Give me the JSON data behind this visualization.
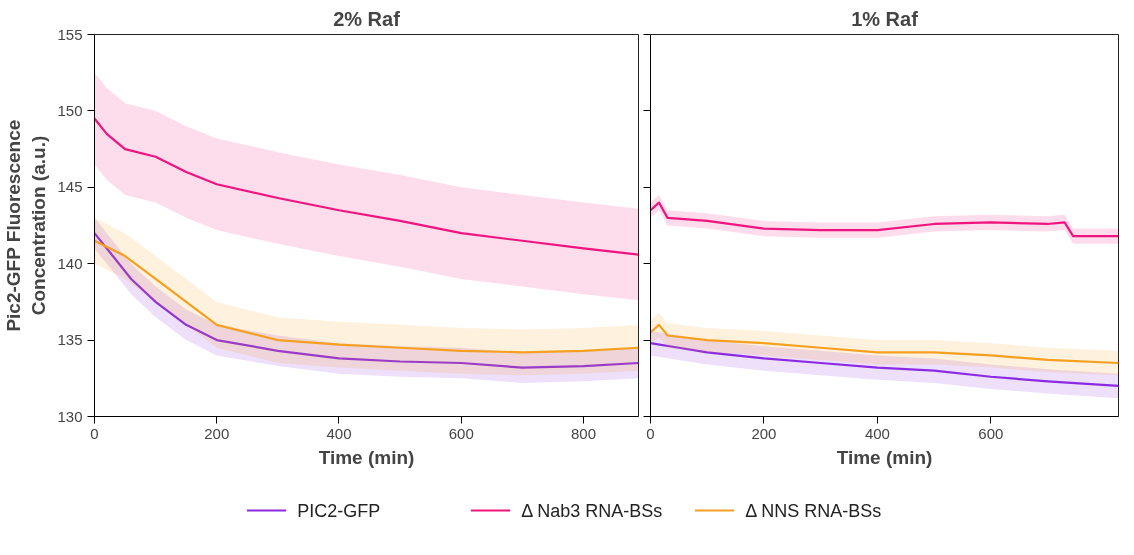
{
  "chart_data": [
    {
      "type": "line",
      "title": "2% Raf",
      "xlabel": "Time (min)",
      "ylabel": "Pic2-GFP Fluorescence\nConcentration (a.u.)",
      "xlim": [
        0,
        890
      ],
      "xticks": [
        0,
        200,
        400,
        600,
        800
      ],
      "ylim": [
        130,
        155
      ],
      "yticks": [
        130,
        135,
        140,
        145,
        150,
        155
      ],
      "grid": false,
      "legend": "bottom",
      "marker": "none",
      "line_style": "solid",
      "series": [
        {
          "name": "PIC2-GFP",
          "color": "#8a2be2",
          "x": [
            0,
            30,
            60,
            100,
            150,
            200,
            300,
            400,
            500,
            600,
            700,
            800,
            890
          ],
          "values": [
            142,
            140.5,
            139,
            137.5,
            136,
            135,
            134.3,
            133.8,
            133.6,
            133.5,
            133.2,
            133.3,
            133.5
          ],
          "lower": [
            141,
            139.5,
            138,
            136.5,
            135,
            134,
            133.3,
            132.8,
            132.6,
            132.5,
            132.2,
            132.3,
            132.5
          ],
          "upper": [
            143,
            141.5,
            140,
            138.5,
            137,
            136,
            135.3,
            134.8,
            134.6,
            134.5,
            134.2,
            134.3,
            134.5
          ]
        },
        {
          "name": "Δ Nab3 RNA-BSs",
          "color": "#f0147f",
          "x": [
            0,
            20,
            50,
            100,
            150,
            200,
            300,
            400,
            500,
            600,
            700,
            800,
            890
          ],
          "values": [
            149.5,
            148.5,
            147.5,
            147,
            146,
            145.2,
            144.3,
            143.5,
            142.8,
            142,
            141.5,
            141,
            140.6
          ],
          "lower": [
            146.5,
            145.5,
            144.5,
            144,
            143,
            142.2,
            141.3,
            140.5,
            139.8,
            139,
            138.5,
            138,
            137.6
          ],
          "upper": [
            152.5,
            151.5,
            150.5,
            150,
            149,
            148.2,
            147.3,
            146.5,
            145.8,
            145,
            144.5,
            144,
            143.6
          ]
        },
        {
          "name": "Δ NNS RNA-BSs",
          "color": "#f5a020",
          "x": [
            0,
            50,
            100,
            150,
            200,
            300,
            400,
            500,
            600,
            700,
            800,
            890
          ],
          "values": [
            141.5,
            140.5,
            139,
            137.5,
            136,
            135,
            134.7,
            134.5,
            134.3,
            134.2,
            134.3,
            134.5
          ],
          "lower": [
            140,
            139,
            137.5,
            136,
            134.5,
            133.5,
            133.2,
            133,
            132.8,
            132.7,
            132.8,
            133
          ],
          "upper": [
            143,
            142,
            140.5,
            139,
            137.5,
            136.5,
            136.2,
            136,
            135.8,
            135.7,
            135.8,
            136
          ]
        }
      ]
    },
    {
      "type": "line",
      "title": "1% Raf",
      "xlabel": "Time (min)",
      "xlim": [
        0,
        825
      ],
      "xticks": [
        0,
        200,
        400,
        600
      ],
      "ylim": [
        130,
        155
      ],
      "yticks": [
        130,
        135,
        140,
        145,
        150,
        155
      ],
      "grid": false,
      "tick_labels": "x",
      "marker": "none",
      "line_style": "solid",
      "series": [
        {
          "color": "#8a2be2",
          "x": [
            0,
            50,
            100,
            200,
            300,
            400,
            500,
            600,
            700,
            825
          ],
          "values": [
            134.8,
            134.5,
            134.2,
            133.8,
            133.5,
            133.2,
            133,
            132.6,
            132.3,
            132
          ],
          "lower": [
            134,
            133.7,
            133.4,
            133,
            132.7,
            132.4,
            132.2,
            131.8,
            131.5,
            131.2
          ],
          "upper": [
            135.6,
            135.3,
            135,
            134.6,
            134.3,
            134,
            133.8,
            133.4,
            133.1,
            132.8
          ]
        },
        {
          "color": "#f0147f",
          "x": [
            0,
            15,
            30,
            100,
            200,
            300,
            400,
            500,
            600,
            700,
            730,
            745,
            825
          ],
          "values": [
            143.5,
            144,
            143,
            142.8,
            142.3,
            142.2,
            142.2,
            142.6,
            142.7,
            142.6,
            142.7,
            141.8,
            141.8
          ],
          "lower": [
            143,
            143.5,
            142.5,
            142.3,
            141.8,
            141.7,
            141.7,
            142.1,
            142.2,
            142.1,
            142.2,
            141.3,
            141.3
          ],
          "upper": [
            144,
            144.5,
            143.5,
            143.3,
            142.8,
            142.7,
            142.7,
            143.1,
            143.2,
            143.1,
            143.2,
            142.3,
            142.3
          ]
        },
        {
          "color": "#f5a020",
          "x": [
            0,
            15,
            30,
            100,
            200,
            300,
            400,
            500,
            600,
            700,
            825
          ],
          "values": [
            135.5,
            136,
            135.3,
            135,
            134.8,
            134.5,
            134.2,
            134.2,
            134,
            133.7,
            133.5
          ],
          "lower": [
            134.7,
            135.2,
            134.5,
            134.2,
            134,
            133.7,
            133.4,
            133.4,
            133.2,
            132.9,
            132.7
          ],
          "upper": [
            136.3,
            136.8,
            136.1,
            135.8,
            135.6,
            135.3,
            135,
            135,
            134.8,
            134.5,
            134.3
          ]
        }
      ]
    }
  ]
}
